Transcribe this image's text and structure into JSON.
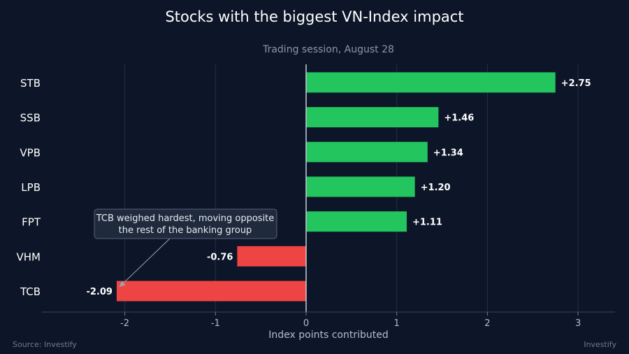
{
  "chart_data": {
    "type": "bar",
    "orientation": "horizontal",
    "title": "Stocks with the biggest VN-Index impact",
    "subtitle": "Trading session, August 28",
    "xlabel": "Index points contributed",
    "ylabel": "",
    "categories": [
      "STB",
      "SSB",
      "VPB",
      "LPB",
      "FPT",
      "VHM",
      "TCB"
    ],
    "values": [
      2.75,
      1.46,
      1.34,
      1.2,
      1.11,
      -0.76,
      -2.09
    ],
    "data_labels": [
      "+2.75",
      "+1.46",
      "+1.34",
      "+1.20",
      "+1.11",
      "-0.76",
      "-2.09"
    ],
    "xlim": [
      -2.9,
      3.4
    ],
    "xticks": [
      -2,
      -1,
      0,
      1,
      2,
      3
    ],
    "xtick_labels": [
      "-2",
      "-1",
      "0",
      "1",
      "2",
      "3"
    ],
    "grid": true,
    "annotation": {
      "target_category": "TCB",
      "lines": [
        "TCB weighed hardest, moving opposite",
        "the rest of the banking group"
      ]
    }
  },
  "footer": {
    "source": "Source: Investify",
    "brand": "Investify"
  },
  "colors": {
    "background": "#0d1628",
    "positive": "#22c55e",
    "negative": "#ef4444",
    "grid": "#243047",
    "zero_line": "#c7cedb",
    "annotation_box": "#1f2a3d",
    "annotation_border": "#56627a"
  }
}
